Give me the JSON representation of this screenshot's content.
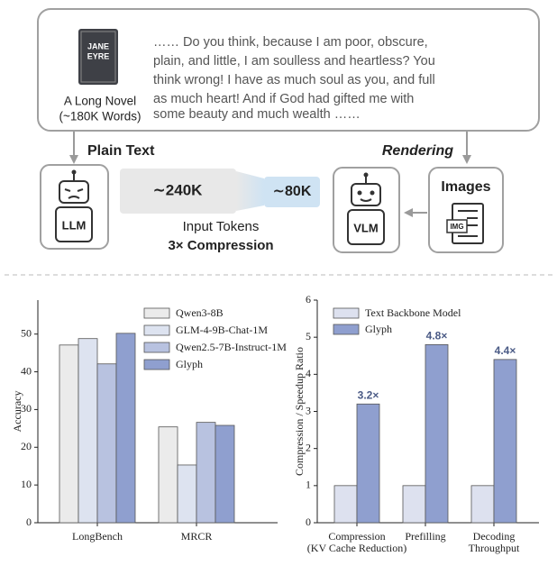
{
  "diagram": {
    "quote": [
      "…… Do you think, because I am poor, obscure,",
      "plain, and little, I am soulless and heartless? You",
      "think wrong! I have as much soul as you, and full",
      "as much heart! And if God had gifted me with",
      "some beauty and much wealth ……"
    ],
    "book_cover": [
      "JANE",
      "EYRE"
    ],
    "book_label": [
      "A Long Novel",
      "(~180K Words)"
    ],
    "plain_text": "Plain Text",
    "rendering": "Rendering",
    "llm": "LLM",
    "vlm": "VLM",
    "tokens_before": "∼240K",
    "tokens_after": "∼80K",
    "input_tokens": "Input Tokens",
    "compression": "3× Compression",
    "images": "Images",
    "img": "IMG"
  },
  "chart_data": [
    {
      "type": "bar",
      "ylabel": "Accuracy",
      "categories": [
        "LongBench",
        "MRCR"
      ],
      "series": [
        {
          "name": "Qwen3-8B",
          "color": "#ebebeb",
          "values": [
            47.1,
            25.4
          ]
        },
        {
          "name": "GLM-4-9B-Chat-1M",
          "color": "#dde3f0",
          "values": [
            48.8,
            15.3
          ]
        },
        {
          "name": "Qwen2.5-7B-Instruct-1M",
          "color": "#b8c2e0",
          "values": [
            42.1,
            26.6
          ]
        },
        {
          "name": "Glyph",
          "color": "#8f9fcf",
          "values": [
            50.2,
            25.8
          ]
        }
      ],
      "ylim": [
        0,
        59
      ],
      "yticks": [
        0,
        10,
        20,
        30,
        40,
        50
      ],
      "legend": "upper right"
    },
    {
      "type": "bar",
      "ylabel": "Compression / Speedup Ratio",
      "categories": [
        [
          "Compression",
          "(KV Cache Reduction)"
        ],
        [
          "Prefilling"
        ],
        [
          "Decoding",
          "Throughput"
        ]
      ],
      "series": [
        {
          "name": "Text Backbone Model",
          "color": "#dde1ef",
          "values": [
            1,
            1,
            1
          ]
        },
        {
          "name": "Glyph",
          "color": "#8f9fcf",
          "values": [
            3.2,
            4.8,
            4.4
          ],
          "value_labels": [
            "3.2×",
            "4.8×",
            "4.4×"
          ]
        }
      ],
      "ylim": [
        0,
        6
      ],
      "yticks": [
        0,
        1,
        2,
        3,
        4,
        5,
        6
      ],
      "legend": "upper left"
    }
  ]
}
